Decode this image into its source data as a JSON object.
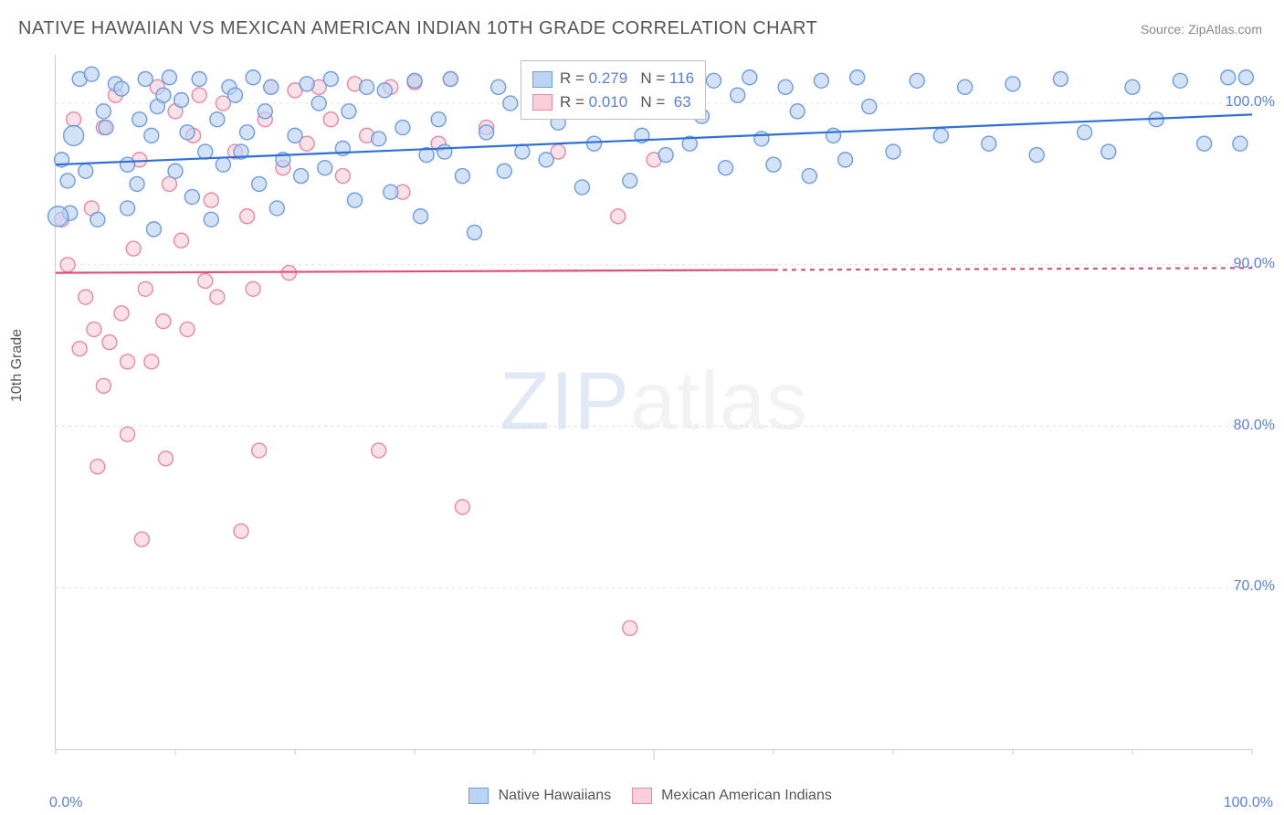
{
  "title": "NATIVE HAWAIIAN VS MEXICAN AMERICAN INDIAN 10TH GRADE CORRELATION CHART",
  "source": "Source: ZipAtlas.com",
  "y_axis_label": "10th Grade",
  "watermark": {
    "zip": "ZIP",
    "atlas": "atlas"
  },
  "chart": {
    "type": "scatter",
    "xlim": [
      0,
      100
    ],
    "ylim": [
      60,
      103
    ],
    "y_ticks": [
      70,
      80,
      90,
      100
    ],
    "y_tick_labels": [
      "70.0%",
      "80.0%",
      "90.0%",
      "100.0%"
    ],
    "x_edge_labels": [
      "0.0%",
      "100.0%"
    ],
    "grid_color": "#e0e0e0",
    "axis_color": "#cccccc",
    "background_color": "#ffffff",
    "marker_radius": 8,
    "marker_radius_large": 11,
    "marker_stroke_width": 1.4,
    "trend_line_width": 2.2,
    "dash_pattern": "5,5"
  },
  "series": [
    {
      "name": "Native Hawaiians",
      "fill": "#bcd3f3",
      "stroke": "#6d9de0",
      "trend_color": "#2f6fd8",
      "R": "0.279",
      "N": "116",
      "trend": {
        "x1": 0,
        "y1": 96.2,
        "x2": 100,
        "y2": 99.3,
        "dash_from_x": null
      },
      "points": [
        [
          0.5,
          96.5
        ],
        [
          1,
          95.2
        ],
        [
          1.2,
          93.2
        ],
        [
          2,
          101.5
        ],
        [
          2.5,
          95.8
        ],
        [
          3,
          101.8
        ],
        [
          3.5,
          92.8
        ],
        [
          4,
          99.5
        ],
        [
          4.2,
          98.5
        ],
        [
          5,
          101.2
        ],
        [
          5.5,
          100.9
        ],
        [
          6,
          96.2
        ],
        [
          6,
          93.5
        ],
        [
          6.8,
          95.0
        ],
        [
          7,
          99.0
        ],
        [
          7.5,
          101.5
        ],
        [
          8,
          98.0
        ],
        [
          8.2,
          92.2
        ],
        [
          8.5,
          99.8
        ],
        [
          9,
          100.5
        ],
        [
          9.5,
          101.6
        ],
        [
          10,
          95.8
        ],
        [
          10.5,
          100.2
        ],
        [
          11,
          98.2
        ],
        [
          11.4,
          94.2
        ],
        [
          12,
          101.5
        ],
        [
          12.5,
          97.0
        ],
        [
          13,
          92.8
        ],
        [
          13.5,
          99.0
        ],
        [
          14,
          96.2
        ],
        [
          14.5,
          101.0
        ],
        [
          15,
          100.5
        ],
        [
          15.5,
          97.0
        ],
        [
          16,
          98.2
        ],
        [
          16.5,
          101.6
        ],
        [
          17,
          95.0
        ],
        [
          17.5,
          99.5
        ],
        [
          18,
          101.0
        ],
        [
          18.5,
          93.5
        ],
        [
          19,
          96.5
        ],
        [
          20,
          98.0
        ],
        [
          20.5,
          95.5
        ],
        [
          21,
          101.2
        ],
        [
          22,
          100.0
        ],
        [
          22.5,
          96.0
        ],
        [
          23,
          101.5
        ],
        [
          24,
          97.2
        ],
        [
          24.5,
          99.5
        ],
        [
          25,
          94.0
        ],
        [
          26,
          101.0
        ],
        [
          27,
          97.8
        ],
        [
          27.5,
          100.8
        ],
        [
          28,
          94.5
        ],
        [
          29,
          98.5
        ],
        [
          30,
          101.4
        ],
        [
          30.5,
          93.0
        ],
        [
          31,
          96.8
        ],
        [
          32,
          99.0
        ],
        [
          32.5,
          97.0
        ],
        [
          33,
          101.5
        ],
        [
          34,
          95.5
        ],
        [
          35,
          92.0
        ],
        [
          36,
          98.2
        ],
        [
          37,
          101.0
        ],
        [
          37.5,
          95.8
        ],
        [
          38,
          100.0
        ],
        [
          39,
          97.0
        ],
        [
          40,
          101.2
        ],
        [
          41,
          96.5
        ],
        [
          42,
          98.8
        ],
        [
          43,
          101.6
        ],
        [
          44,
          94.8
        ],
        [
          45,
          97.5
        ],
        [
          46,
          100.5
        ],
        [
          47,
          101.3
        ],
        [
          48,
          95.2
        ],
        [
          49,
          98.0
        ],
        [
          50,
          101.0
        ],
        [
          51,
          96.8
        ],
        [
          52,
          101.6
        ],
        [
          53,
          97.5
        ],
        [
          54,
          99.2
        ],
        [
          55,
          101.4
        ],
        [
          56,
          96.0
        ],
        [
          57,
          100.5
        ],
        [
          58,
          101.6
        ],
        [
          59,
          97.8
        ],
        [
          60,
          96.2
        ],
        [
          61,
          101.0
        ],
        [
          62,
          99.5
        ],
        [
          63,
          95.5
        ],
        [
          64,
          101.4
        ],
        [
          65,
          98.0
        ],
        [
          66,
          96.5
        ],
        [
          67,
          101.6
        ],
        [
          68,
          99.8
        ],
        [
          70,
          97.0
        ],
        [
          72,
          101.4
        ],
        [
          74,
          98.0
        ],
        [
          76,
          101.0
        ],
        [
          78,
          97.5
        ],
        [
          80,
          101.2
        ],
        [
          82,
          96.8
        ],
        [
          84,
          101.5
        ],
        [
          86,
          98.2
        ],
        [
          88,
          97.0
        ],
        [
          90,
          101.0
        ],
        [
          92,
          99.0
        ],
        [
          94,
          101.4
        ],
        [
          96,
          97.5
        ],
        [
          98,
          101.6
        ],
        [
          99.5,
          101.6
        ],
        [
          99,
          97.5
        ],
        [
          0.2,
          93.0,
          true
        ],
        [
          1.5,
          98.0,
          true
        ]
      ]
    },
    {
      "name": "Mexican American Indians",
      "fill": "#f8d0da",
      "stroke": "#e68aa3",
      "trend_color": "#e04f7a",
      "R": "0.010",
      "N": "63",
      "trend": {
        "x1": 0,
        "y1": 89.5,
        "x2": 100,
        "y2": 89.8,
        "dash_from_x": 60
      },
      "points": [
        [
          0.5,
          92.8
        ],
        [
          1,
          90.0
        ],
        [
          1.5,
          99.0
        ],
        [
          2,
          84.8
        ],
        [
          2.5,
          88.0
        ],
        [
          3,
          93.5
        ],
        [
          3.2,
          86.0
        ],
        [
          3.5,
          77.5
        ],
        [
          4,
          98.5
        ],
        [
          4,
          82.5
        ],
        [
          4.5,
          85.2
        ],
        [
          5,
          100.5
        ],
        [
          5.5,
          87.0
        ],
        [
          6,
          79.5
        ],
        [
          6,
          84.0
        ],
        [
          6.5,
          91.0
        ],
        [
          7,
          96.5
        ],
        [
          7.2,
          73.0
        ],
        [
          7.5,
          88.5
        ],
        [
          8,
          84.0
        ],
        [
          8.5,
          101.0
        ],
        [
          9,
          86.5
        ],
        [
          9.2,
          78.0
        ],
        [
          9.5,
          95.0
        ],
        [
          10,
          99.5
        ],
        [
          10.5,
          91.5
        ],
        [
          11,
          86.0
        ],
        [
          11.5,
          98.0
        ],
        [
          12,
          100.5
        ],
        [
          12.5,
          89.0
        ],
        [
          13,
          94.0
        ],
        [
          13.5,
          88.0
        ],
        [
          14,
          100.0
        ],
        [
          15,
          97.0
        ],
        [
          15.5,
          73.5
        ],
        [
          16,
          93.0
        ],
        [
          16.5,
          88.5
        ],
        [
          17,
          78.5
        ],
        [
          17.5,
          99.0
        ],
        [
          18,
          101.0
        ],
        [
          19,
          96.0
        ],
        [
          19.5,
          89.5
        ],
        [
          20,
          100.8
        ],
        [
          21,
          97.5
        ],
        [
          22,
          101.0
        ],
        [
          23,
          99.0
        ],
        [
          24,
          95.5
        ],
        [
          25,
          101.2
        ],
        [
          26,
          98.0
        ],
        [
          27,
          78.5
        ],
        [
          28,
          101.0
        ],
        [
          29,
          94.5
        ],
        [
          30,
          101.3
        ],
        [
          32,
          97.5
        ],
        [
          33,
          101.5
        ],
        [
          34,
          75.0
        ],
        [
          36,
          98.5
        ],
        [
          40,
          101.0
        ],
        [
          42,
          97.0
        ],
        [
          45,
          101.5
        ],
        [
          47,
          93.0
        ],
        [
          48,
          67.5
        ],
        [
          50,
          96.5
        ]
      ]
    }
  ],
  "legend": {
    "series1": "Native Hawaiians",
    "series2": "Mexican American Indians"
  }
}
